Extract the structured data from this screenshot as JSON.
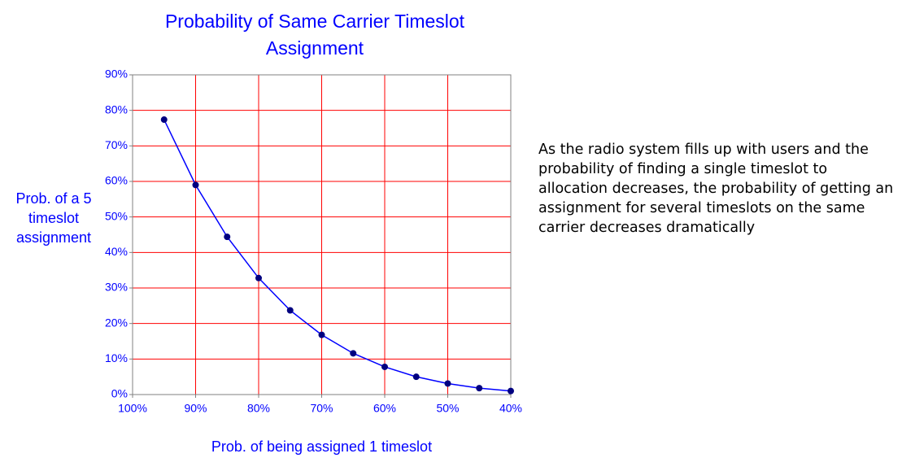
{
  "chart_data": {
    "type": "line",
    "title": "Probability of Same Carrier Timeslot Assignment",
    "x_label": "Prob. of being assigned 1 timeslot",
    "y_label": "Prob. of a 5 timeslot assignment",
    "annotation": "As the radio system fills up with users and the probability of finding a single timeslot to allocation decreases, the probability of getting an assignment for several timeslots on the same carrier decreases dramatically",
    "x": [
      95,
      90,
      85,
      80,
      75,
      70,
      65,
      60,
      55,
      50,
      45,
      40
    ],
    "series": [
      {
        "name": "Prob. of a 5 timeslot assignment",
        "color": "#0000ff",
        "marker_color": "#000080",
        "values": [
          77.4,
          59.0,
          44.4,
          32.8,
          23.7,
          16.8,
          11.6,
          7.8,
          5.0,
          3.1,
          1.8,
          1.0
        ]
      }
    ],
    "xlim": [
      100,
      40
    ],
    "xticks": [
      {
        "value": 100,
        "label": "100%"
      },
      {
        "value": 90,
        "label": "90%"
      },
      {
        "value": 80,
        "label": "80%"
      },
      {
        "value": 70,
        "label": "70%"
      },
      {
        "value": 60,
        "label": "60%"
      },
      {
        "value": 50,
        "label": "50%"
      },
      {
        "value": 40,
        "label": "40%"
      }
    ],
    "ylim": [
      0,
      90
    ],
    "yticks": [
      {
        "value": 0,
        "label": "0%"
      },
      {
        "value": 10,
        "label": "10%"
      },
      {
        "value": 20,
        "label": "20%"
      },
      {
        "value": 30,
        "label": "30%"
      },
      {
        "value": 40,
        "label": "40%"
      },
      {
        "value": 50,
        "label": "50%"
      },
      {
        "value": 60,
        "label": "60%"
      },
      {
        "value": 70,
        "label": "70%"
      },
      {
        "value": 80,
        "label": "80%"
      },
      {
        "value": 90,
        "label": "90%"
      }
    ],
    "grid": true,
    "grid_color": "#ff0000"
  }
}
